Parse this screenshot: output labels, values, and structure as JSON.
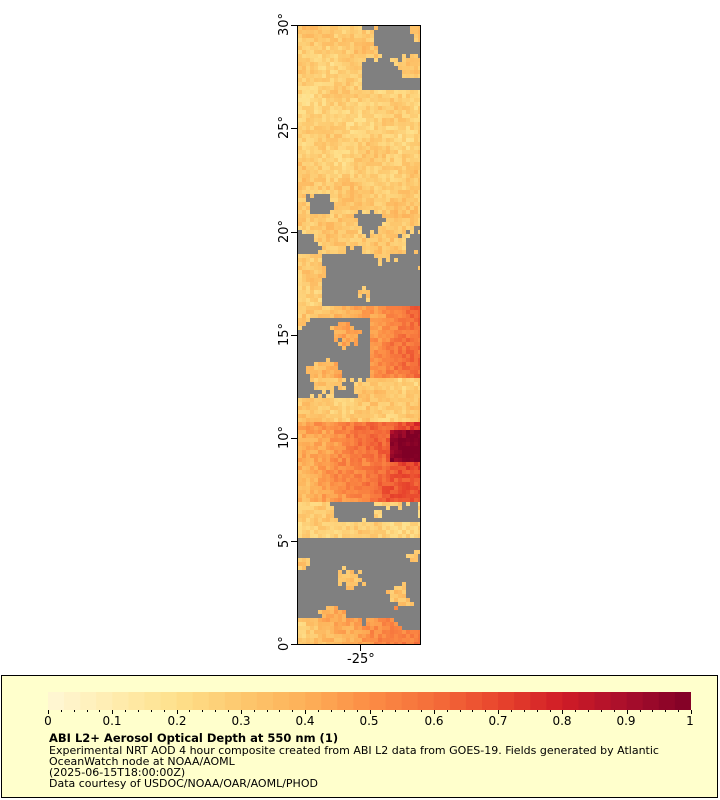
{
  "map": {
    "y_axis_labels": [
      "0°",
      "5°",
      "10°",
      "15°",
      "20°",
      "25°",
      "30°"
    ],
    "x_axis_labels": [
      "-25°"
    ],
    "land_color": "#808080",
    "nodata_color": "#808080"
  },
  "legend": {
    "title": "ABI L2+ Aerosol Optical Depth at 550 nm (1)",
    "line1": "Experimental NRT AOD 4 hour composite created from ABI L2 data from GOES-19. Fields generated by Atlantic",
    "line2": "OceanWatch node at NOAA/AOML",
    "line3": "(2025-06-15T18:00:00Z)",
    "line4": "Data courtesy of USDOC/NOAA/OAR/AOML/PHOD",
    "colorbar_labels": [
      "0",
      "0.1",
      "0.2",
      "0.3",
      "0.4",
      "0.5",
      "0.6",
      "0.7",
      "0.8",
      "0.9",
      "1"
    ],
    "colorbar_range": [
      0,
      1
    ],
    "colors": [
      "#fff7d6",
      "#ffedb0",
      "#fee08b",
      "#fdc86e",
      "#fdb058",
      "#fc8d45",
      "#f46d3a",
      "#e8452d",
      "#d01c26",
      "#a80e2c",
      "#800026"
    ],
    "background_color": "#ffffcc"
  }
}
